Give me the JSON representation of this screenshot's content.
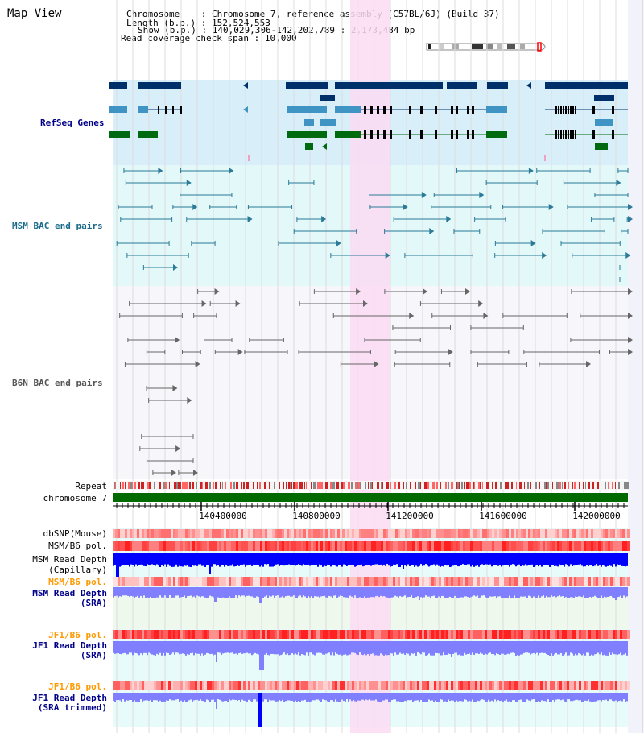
{
  "title": "Map View",
  "info": {
    "chromosome_label": "Chromosome",
    "chromosome_value": "Chromosome 7, reference assembly (C57BL/6J) (Build 37)",
    "length_label": "Length (b.p.)",
    "length_value": "152,524,553",
    "show_label": "Show (b.p.)",
    "show_value": "140,029,306-142,202,789 : 2,173,484 bp",
    "span_label": "Read coverage check span",
    "span_value": "10,000"
  },
  "tracks": {
    "refseq": "RefSeq Genes",
    "msm_bac": "MSM BAC end pairs",
    "b6n_bac": "B6N BAC end pairs",
    "repeat": "Repeat",
    "chrom": "chromosome 7",
    "dbsnp": "dbSNP(Mouse)",
    "msm_b6_pol_1": "MSM/B6 pol.",
    "msm_read_cap_1": "MSM Read Depth",
    "msm_read_cap_2": "(Capillary)",
    "msm_b6_pol_2": "MSM/B6 pol.",
    "msm_read_sra_1": "MSM Read Depth",
    "msm_read_sra_2": "(SRA)",
    "jf1_b6_pol_1": "JF1/B6 pol.",
    "jf1_read_sra_1": "JF1 Read Depth",
    "jf1_read_sra_2": "(SRA)",
    "jf1_b6_pol_2": "JF1/B6 pol.",
    "jf1_read_trim_1": "JF1 Read Depth",
    "jf1_read_trim_2": "(SRA trimmed)"
  },
  "axis_ticks": [
    "140400000",
    "140800000",
    "141200000",
    "141600000",
    "142000000"
  ],
  "colors": {
    "refseq_bg": "#d8effa",
    "msm_bg": "#e3f8f8",
    "b6n_bg": "#f6f6fb",
    "highlight": "#fbdcf3",
    "refseq_dark": "#00306a",
    "refseq_light": "#3f94c4",
    "refseq_green": "#006a10",
    "msm_pair": "#2a7a98",
    "b6n_pair": "#666666",
    "chrom_bar": "#006a00",
    "depth_blue": "#0000ff",
    "depth_light": "#7f7fff",
    "label_blue": "#00008b",
    "label_orange": "#ff9900"
  }
}
